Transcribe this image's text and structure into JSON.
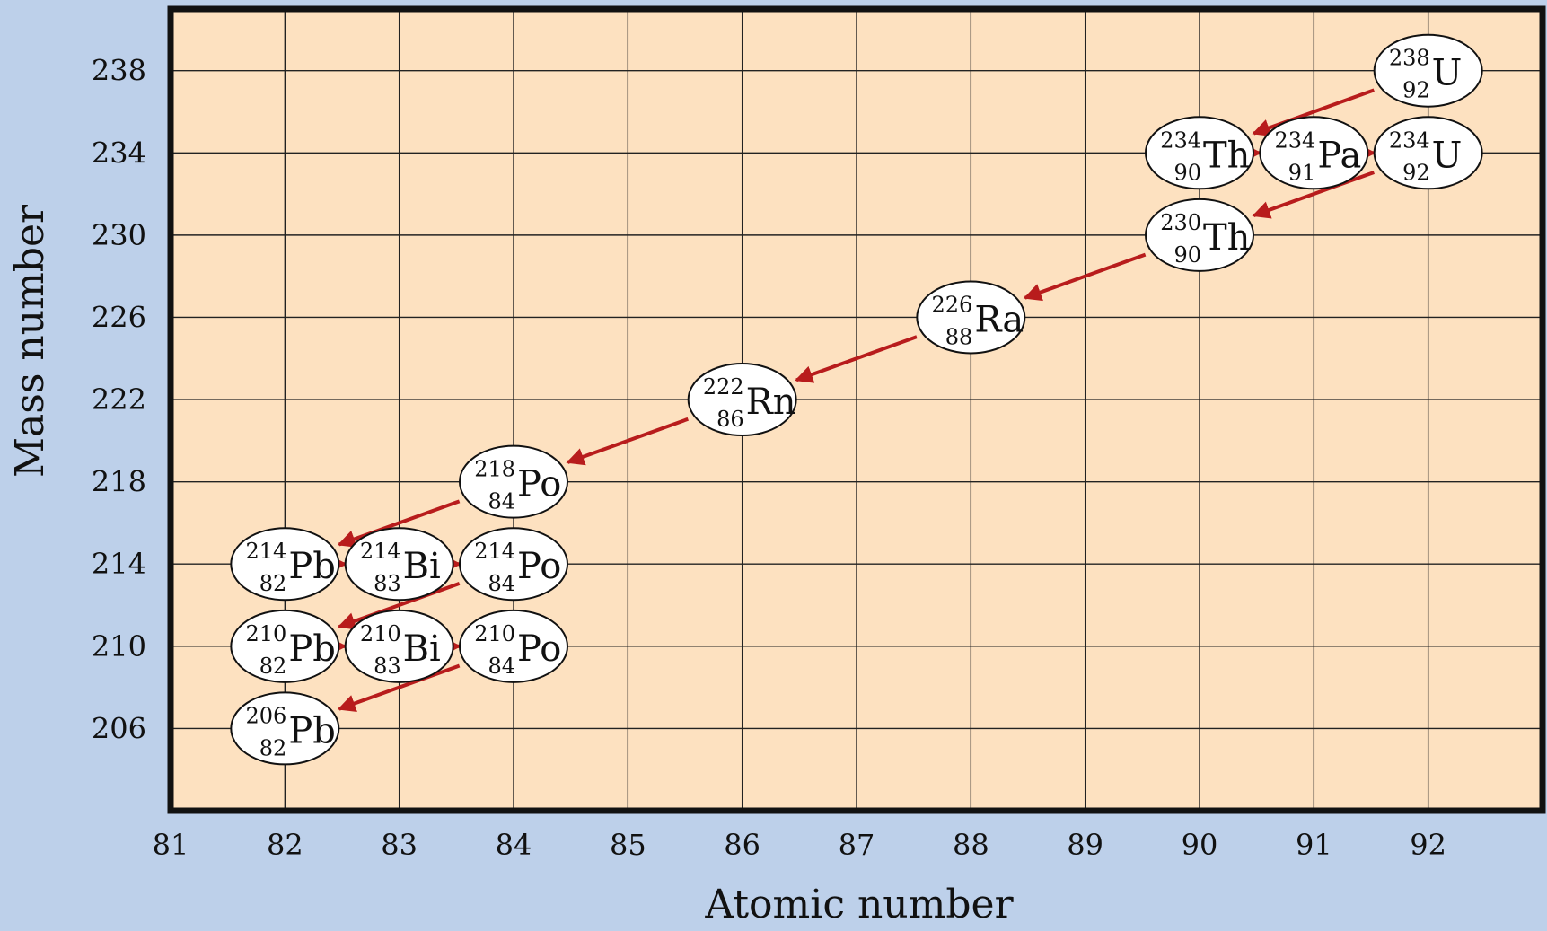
{
  "chart_data": {
    "type": "scatter",
    "title": "",
    "xlabel": "Atomic number",
    "ylabel": "Mass number",
    "xlim": [
      81,
      93
    ],
    "ylim": [
      202,
      241
    ],
    "x_ticks": [
      81,
      82,
      83,
      84,
      85,
      86,
      87,
      88,
      89,
      90,
      91,
      92
    ],
    "y_ticks": [
      206,
      210,
      214,
      218,
      222,
      226,
      230,
      234,
      238
    ],
    "grid": true,
    "colors": {
      "plot_background": "#fde1c0",
      "page_background": "#bdd0ea",
      "arrow": "#b81c1c",
      "node_fill": "#ffffff"
    },
    "nuclides": [
      {
        "symbol": "U",
        "mass": "238",
        "atomic": "92",
        "x": 92,
        "y": 238
      },
      {
        "symbol": "Th",
        "mass": "234",
        "atomic": "90",
        "x": 90,
        "y": 234
      },
      {
        "symbol": "Pa",
        "mass": "234",
        "atomic": "91",
        "x": 91,
        "y": 234
      },
      {
        "symbol": "U",
        "mass": "234",
        "atomic": "92",
        "x": 92,
        "y": 234
      },
      {
        "symbol": "Th",
        "mass": "230",
        "atomic": "90",
        "x": 90,
        "y": 230
      },
      {
        "symbol": "Ra",
        "mass": "226",
        "atomic": "88",
        "x": 88,
        "y": 226
      },
      {
        "symbol": "Rn",
        "mass": "222",
        "atomic": "86",
        "x": 86,
        "y": 222
      },
      {
        "symbol": "Po",
        "mass": "218",
        "atomic": "84",
        "x": 84,
        "y": 218
      },
      {
        "symbol": "Pb",
        "mass": "214",
        "atomic": "82",
        "x": 82,
        "y": 214
      },
      {
        "symbol": "Bi",
        "mass": "214",
        "atomic": "83",
        "x": 83,
        "y": 214
      },
      {
        "symbol": "Po",
        "mass": "214",
        "atomic": "84",
        "x": 84,
        "y": 214
      },
      {
        "symbol": "Pb",
        "mass": "210",
        "atomic": "82",
        "x": 82,
        "y": 210
      },
      {
        "symbol": "Bi",
        "mass": "210",
        "atomic": "83",
        "x": 83,
        "y": 210
      },
      {
        "symbol": "Po",
        "mass": "210",
        "atomic": "84",
        "x": 84,
        "y": 210
      },
      {
        "symbol": "Pb",
        "mass": "206",
        "atomic": "82",
        "x": 82,
        "y": 206
      }
    ],
    "decays": [
      {
        "from": [
          92,
          238
        ],
        "to": [
          90,
          234
        ],
        "kind": "alpha"
      },
      {
        "from": [
          90,
          234
        ],
        "to": [
          91,
          234
        ],
        "kind": "beta"
      },
      {
        "from": [
          91,
          234
        ],
        "to": [
          92,
          234
        ],
        "kind": "beta"
      },
      {
        "from": [
          92,
          234
        ],
        "to": [
          90,
          230
        ],
        "kind": "alpha"
      },
      {
        "from": [
          90,
          230
        ],
        "to": [
          88,
          226
        ],
        "kind": "alpha"
      },
      {
        "from": [
          88,
          226
        ],
        "to": [
          86,
          222
        ],
        "kind": "alpha"
      },
      {
        "from": [
          86,
          222
        ],
        "to": [
          84,
          218
        ],
        "kind": "alpha"
      },
      {
        "from": [
          84,
          218
        ],
        "to": [
          82,
          214
        ],
        "kind": "alpha"
      },
      {
        "from": [
          82,
          214
        ],
        "to": [
          83,
          214
        ],
        "kind": "beta"
      },
      {
        "from": [
          83,
          214
        ],
        "to": [
          84,
          214
        ],
        "kind": "beta"
      },
      {
        "from": [
          84,
          214
        ],
        "to": [
          82,
          210
        ],
        "kind": "alpha"
      },
      {
        "from": [
          82,
          210
        ],
        "to": [
          83,
          210
        ],
        "kind": "beta"
      },
      {
        "from": [
          83,
          210
        ],
        "to": [
          84,
          210
        ],
        "kind": "beta"
      },
      {
        "from": [
          84,
          210
        ],
        "to": [
          82,
          206
        ],
        "kind": "alpha"
      }
    ]
  }
}
